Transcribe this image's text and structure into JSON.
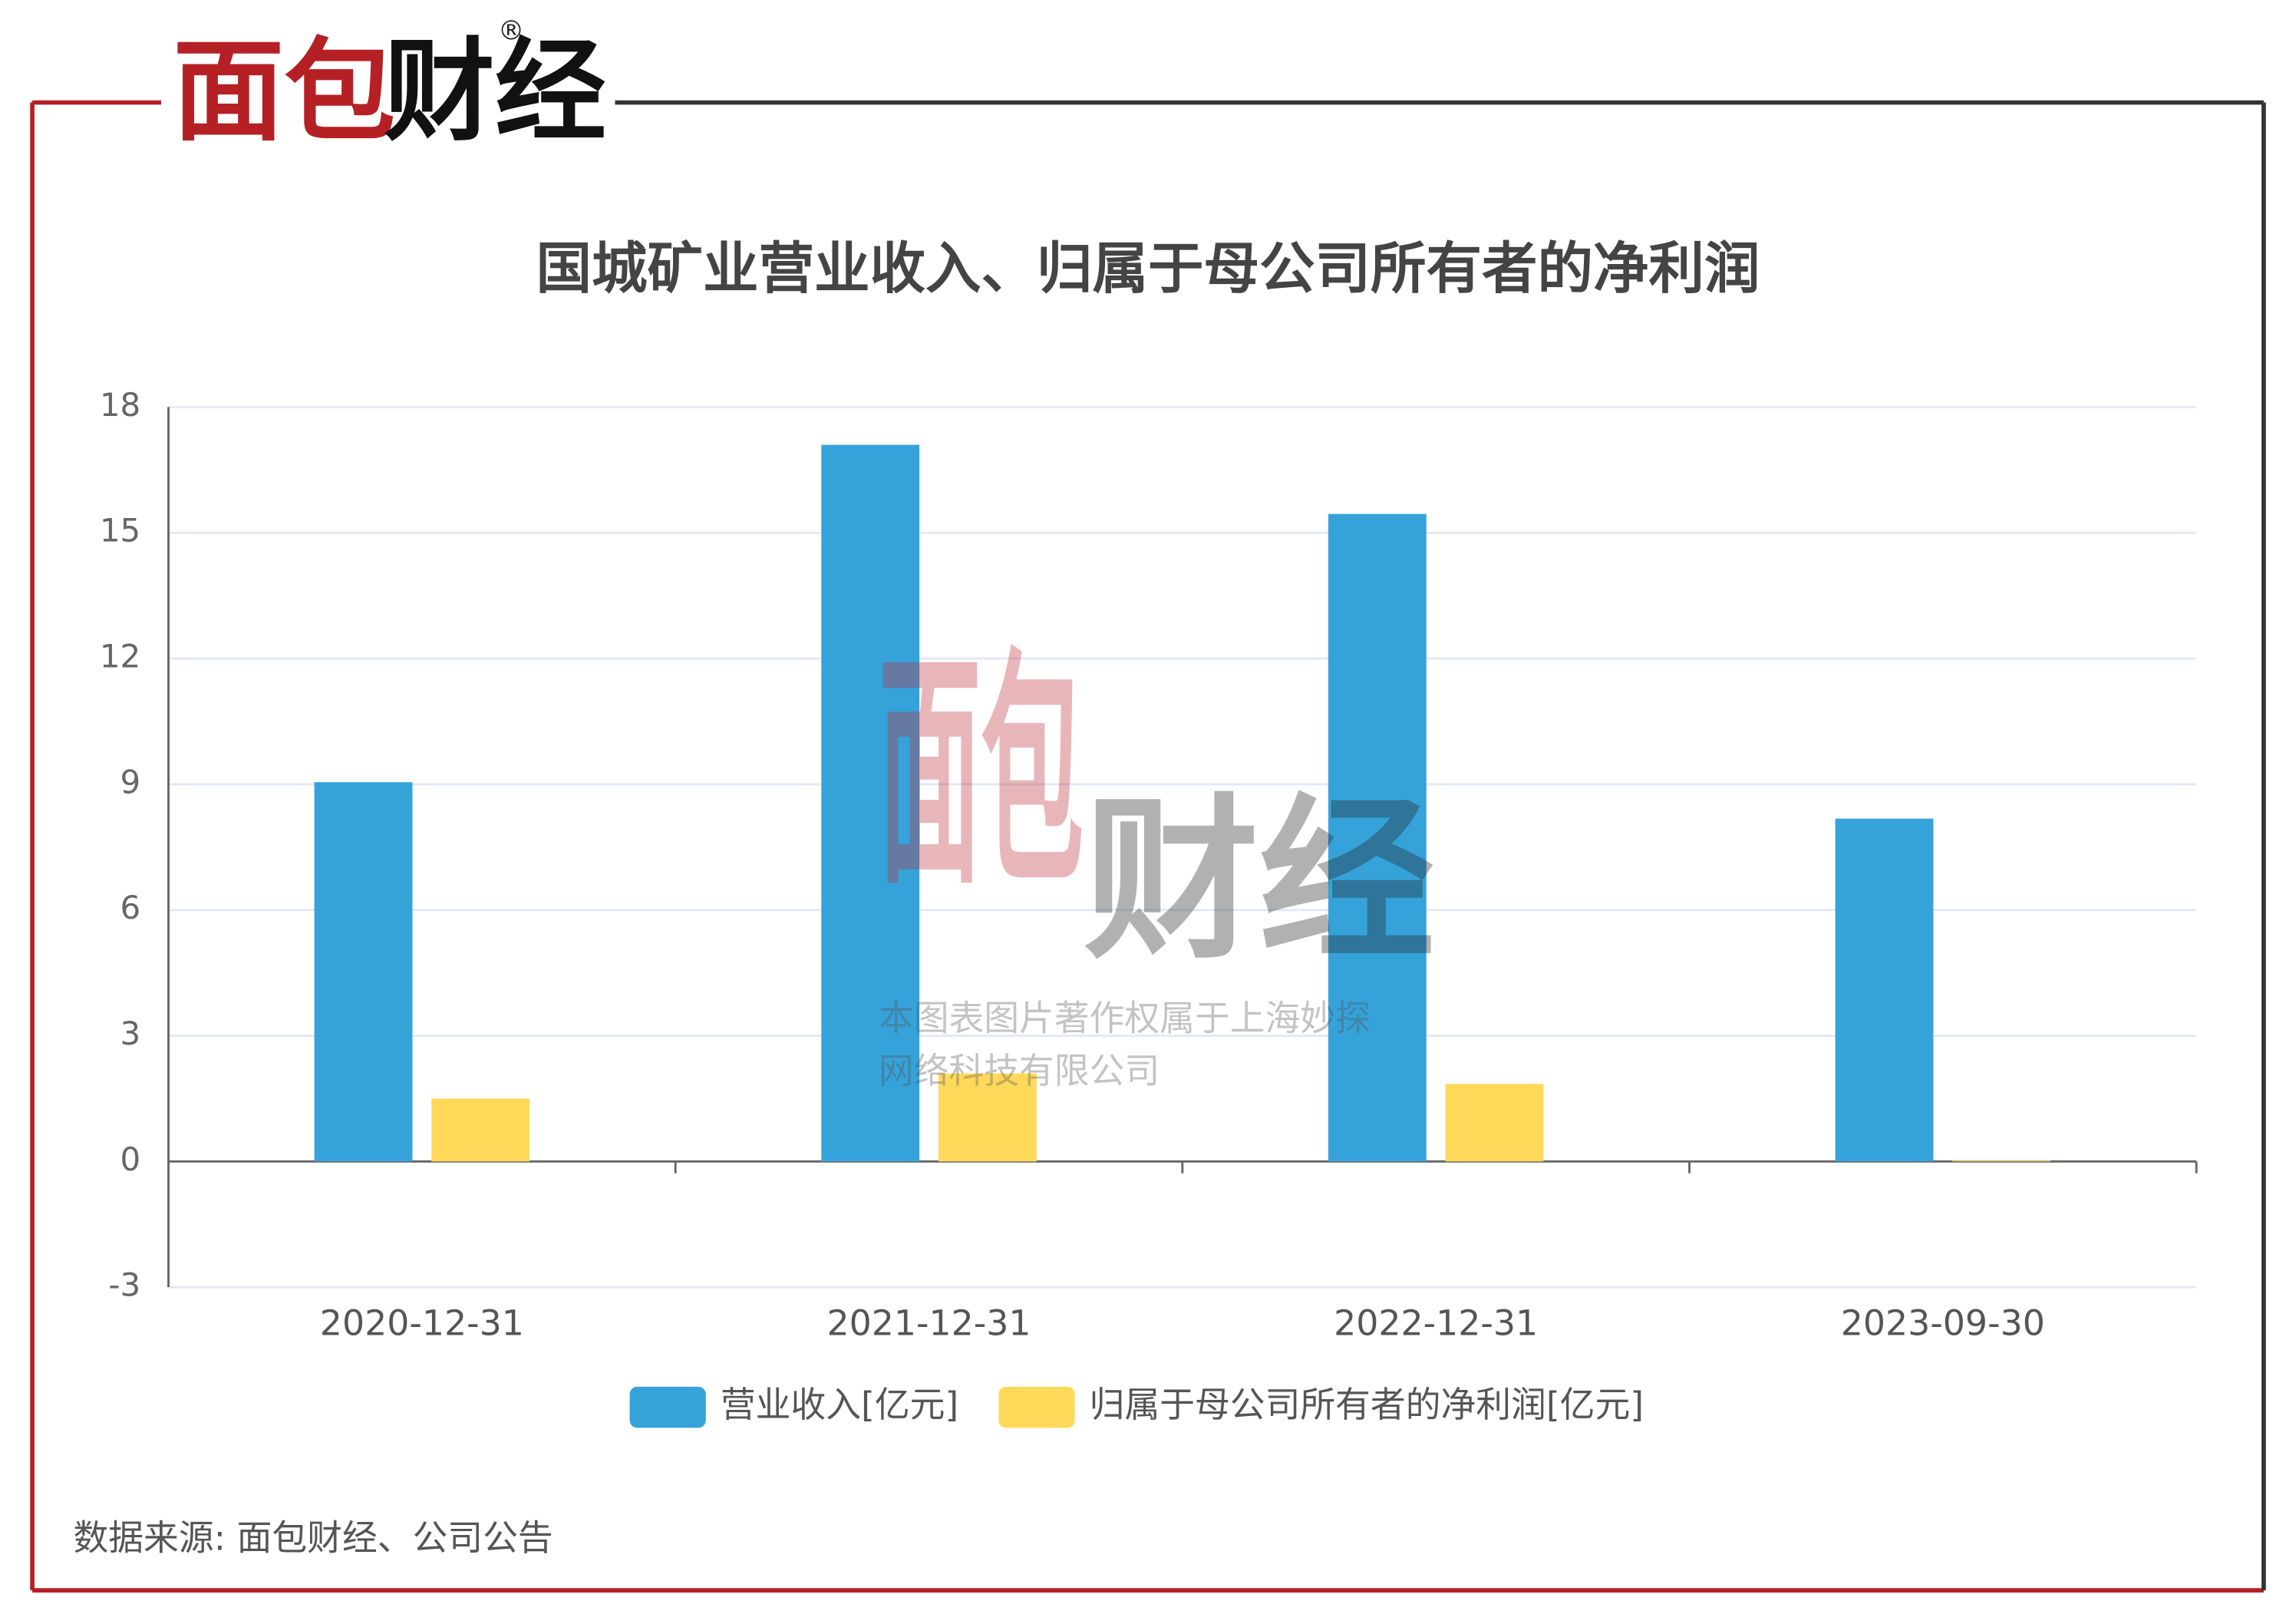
{
  "logo": {
    "part1": "面包",
    "part2": "财经",
    "mark": "®"
  },
  "watermark": {
    "line1": "本图表图片著作权属于上海妙探",
    "line2": "网络科技有限公司"
  },
  "source": "数据来源: 面包财经、公司公告",
  "chart_data": {
    "type": "bar",
    "title": "国城矿业营业收入、归属于母公司所有者的净利润",
    "categories": [
      "2020-12-31",
      "2021-12-31",
      "2022-12-31",
      "2023-09-30"
    ],
    "series": [
      {
        "name": "营业收入[亿元]",
        "color": "#36a2da",
        "values": [
          9.05,
          17.1,
          15.45,
          8.18
        ]
      },
      {
        "name": "归属于母公司所有者的净利润[亿元]",
        "color": "#ffd95a",
        "values": [
          1.5,
          2.1,
          1.85,
          0.02
        ]
      }
    ],
    "ylim": [
      -3,
      18
    ],
    "yticks": [
      -3,
      0,
      3,
      6,
      9,
      12,
      15,
      18
    ],
    "grid": true
  }
}
